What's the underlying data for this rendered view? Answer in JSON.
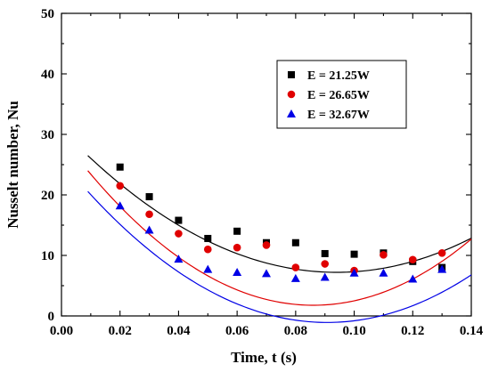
{
  "chart_data": {
    "type": "scatter",
    "xlabel": "Time, t (s)",
    "ylabel": "Nusselt number, Nu",
    "xlim": [
      0.0,
      0.14
    ],
    "ylim": [
      0,
      50
    ],
    "xticks": [
      "0.00",
      "0.02",
      "0.04",
      "0.06",
      "0.08",
      "0.10",
      "0.12",
      "0.14"
    ],
    "yticks": [
      "0",
      "10",
      "20",
      "30",
      "40",
      "50"
    ],
    "xtick_values": [
      0.0,
      0.02,
      0.04,
      0.06,
      0.08,
      0.1,
      0.12,
      0.14
    ],
    "ytick_values": [
      0,
      10,
      20,
      30,
      40,
      50
    ],
    "legend_position": "top-right",
    "grid": false,
    "series": [
      {
        "name": "E = 21.25W",
        "marker": "square",
        "color": "#000000",
        "x": [
          0.02,
          0.03,
          0.04,
          0.05,
          0.06,
          0.07,
          0.08,
          0.09,
          0.1,
          0.11,
          0.12,
          0.13
        ],
        "y": [
          24.6,
          19.7,
          15.8,
          12.8,
          14.0,
          12.1,
          12.1,
          10.3,
          10.2,
          10.4,
          9.0,
          8.0
        ],
        "fit": [
          30.8,
          -502,
          2670
        ]
      },
      {
        "name": "E = 26.65W",
        "marker": "circle",
        "color": "#e00000",
        "x": [
          0.02,
          0.03,
          0.04,
          0.05,
          0.06,
          0.07,
          0.08,
          0.09,
          0.1,
          0.11,
          0.12,
          0.13
        ],
        "y": [
          21.5,
          16.8,
          13.6,
          11.0,
          11.3,
          11.7,
          8.0,
          8.6,
          7.5,
          10.1,
          9.3,
          10.4
        ],
        "fit": [
          29.5,
          -645,
          3750
        ]
      },
      {
        "name": "E = 32.67W",
        "marker": "triangle",
        "color": "#0000e6",
        "x": [
          0.02,
          0.03,
          0.04,
          0.05,
          0.06,
          0.07,
          0.08,
          0.09,
          0.1,
          0.11,
          0.12,
          0.13
        ],
        "y": [
          18.2,
          14.2,
          9.4,
          7.7,
          7.2,
          7.0,
          6.2,
          6.4,
          7.1,
          7.1,
          6.1,
          7.7
        ],
        "fit": [
          25.6,
          -588,
          3240
        ]
      }
    ]
  }
}
